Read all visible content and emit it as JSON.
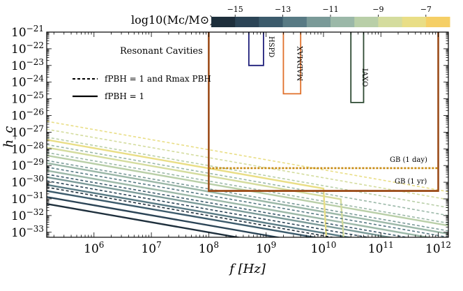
{
  "chart_data": {
    "type": "line",
    "xlabel": "f [Hz]",
    "ylabel": "h_c",
    "xscale": "log",
    "yscale": "log",
    "xlim": [
      150000,
      1500000000000
    ],
    "ylim": [
      5e-34,
      1e-21
    ],
    "x_tick_labels": [
      "10^6",
      "10^7",
      "10^8",
      "10^9",
      "10^10",
      "10^11",
      "10^12"
    ],
    "y_tick_labels": [
      "10^-21",
      "10^-22",
      "10^-23",
      "10^-24",
      "10^-25",
      "10^-26",
      "10^-27",
      "10^-28",
      "10^-29",
      "10^-30",
      "10^-31",
      "10^-32",
      "10^-33"
    ],
    "colorbar": {
      "label": "log10(Mc/M⊙) =",
      "tick_labels": [
        "−15",
        "−13",
        "−11",
        "−9",
        "−7"
      ],
      "range": [
        -16,
        -6
      ],
      "colors": [
        "#1e2f3c",
        "#2b4456",
        "#3c5b6c",
        "#587a84",
        "#7a9a98",
        "#9bb8a8",
        "#b9cfa8",
        "#d4dc9e",
        "#e9de86",
        "#f5cf66"
      ]
    },
    "annotation": "Resonant Cavities",
    "legend": [
      {
        "style": "dashed",
        "label": "fPBH = 1 and Rmax PBH"
      },
      {
        "style": "solid",
        "label": "fPBH = 1"
      }
    ],
    "detectors": [
      {
        "name": "HSPD",
        "x": [
          500000000,
          900000000
        ],
        "y": [
          1e-21,
          1e-23
        ],
        "color": "#1f1f7a"
      },
      {
        "name": "MADMAX",
        "x": [
          2000000000,
          4000000000
        ],
        "y": [
          1e-21,
          2e-25
        ],
        "color": "#e0702a"
      },
      {
        "name": "IAXO",
        "x": [
          30000000000,
          50000000000
        ],
        "y": [
          1e-21,
          6e-26
        ],
        "color": "#2e4a33"
      },
      {
        "name": "",
        "x": [
          100000000,
          1000000000000
        ],
        "y": [
          1e-21,
          3e-31
        ],
        "color": "#9c4c1a"
      }
    ],
    "gb_lines": [
      {
        "label": "GB (1 day)",
        "x": [
          100000000,
          1000000000000
        ],
        "y": 7e-30,
        "style": "dotted",
        "color": "#c78a12"
      },
      {
        "label": "GB (1 yr)",
        "x": [
          100000000,
          1000000000000
        ],
        "y": 3e-31,
        "style": "solid",
        "color": "#9c4c1a"
      }
    ],
    "series": [
      {
        "style": "solid",
        "logMc": -16,
        "y_at_x_min": 5e-32,
        "y_at_x_max": 3e-36
      },
      {
        "style": "solid",
        "logMc": -15,
        "y_at_x_min": 1.3e-31,
        "y_at_x_max": 8e-36
      },
      {
        "style": "solid",
        "logMc": -14,
        "y_at_x_min": 3e-31,
        "y_at_x_max": 2e-35
      },
      {
        "style": "solid",
        "logMc": -13,
        "y_at_x_min": 7e-31,
        "y_at_x_max": 4.5e-35
      },
      {
        "style": "solid",
        "logMc": -12,
        "y_at_x_min": 2e-30,
        "y_at_x_max": 1.2e-34
      },
      {
        "style": "solid",
        "logMc": -11,
        "y_at_x_min": 5e-30,
        "y_at_x_max": 3e-34
      },
      {
        "style": "solid",
        "logMc": -10,
        "y_at_x_min": 1.4e-29,
        "y_at_x_max": 8e-34
      },
      {
        "style": "solid",
        "logMc": -9,
        "y_at_x_min": 4e-29,
        "y_at_x_max": 2.5e-33
      },
      {
        "style": "solid",
        "logMc": -8,
        "y_at_x_min": 1.2e-28,
        "y_at_x_max": 7e-33,
        "cutoff_x": 20000000000
      },
      {
        "style": "solid",
        "logMc": -7,
        "y_at_x_min": 3.5e-28,
        "y_at_x_max": 2e-32,
        "cutoff_x": 10000000000
      },
      {
        "style": "dashed",
        "logMc": -16,
        "y_at_x_min": 5e-31,
        "y_at_x_max": 3e-35
      },
      {
        "style": "dashed",
        "logMc": -15,
        "y_at_x_min": 1.2e-30,
        "y_at_x_max": 7e-35
      },
      {
        "style": "dashed",
        "logMc": -14,
        "y_at_x_min": 3e-30,
        "y_at_x_max": 1.8e-34
      },
      {
        "style": "dashed",
        "logMc": -13,
        "y_at_x_min": 8e-30,
        "y_at_x_max": 5e-34
      },
      {
        "style": "dashed",
        "logMc": -12,
        "y_at_x_min": 2e-29,
        "y_at_x_max": 1.2e-33
      },
      {
        "style": "dashed",
        "logMc": -11,
        "y_at_x_min": 6e-29,
        "y_at_x_max": 3.5e-33
      },
      {
        "style": "dashed",
        "logMc": -10,
        "y_at_x_min": 1.8e-28,
        "y_at_x_max": 1e-32
      },
      {
        "style": "dashed",
        "logMc": -9,
        "y_at_x_min": 5e-28,
        "y_at_x_max": 3e-32
      },
      {
        "style": "dashed",
        "logMc": -8,
        "y_at_x_min": 1.5e-27,
        "y_at_x_max": 9e-32
      },
      {
        "style": "dashed",
        "logMc": -7,
        "y_at_x_min": 4.5e-27,
        "y_at_x_max": 2.7e-31
      }
    ]
  }
}
